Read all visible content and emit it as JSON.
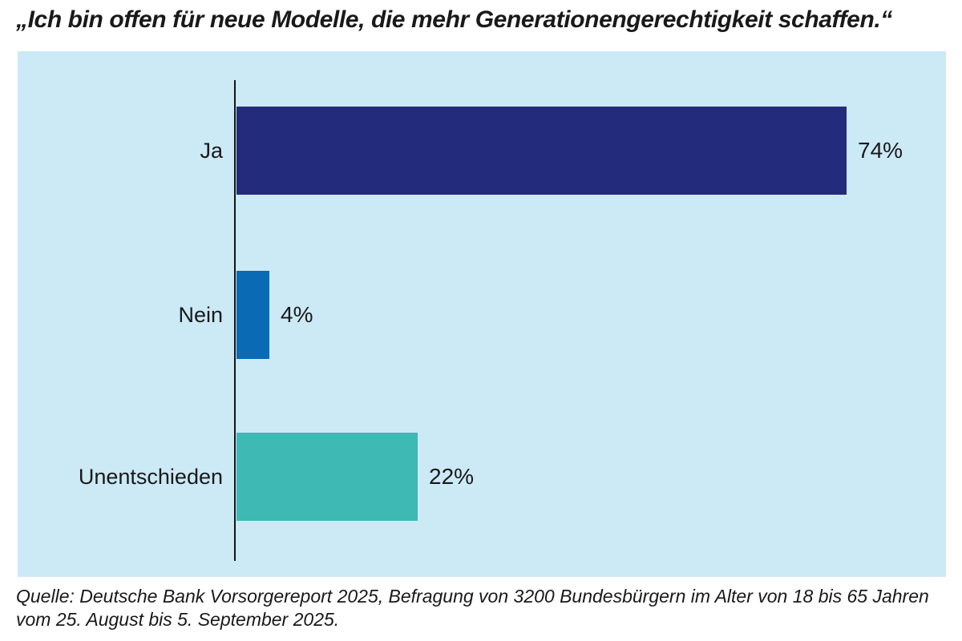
{
  "title": "„Ich bin offen für neue Modelle, die mehr Generationengerechtigkeit schaffen.“",
  "source": "Quelle: Deutsche Bank Vorsorgereport 2025, Befragung von 3200 Bundesbürgern im Alter von 18 bis 65 Jahren vom 25. August bis 5. September 2025.",
  "colors": {
    "panel_background": "#cce9f6",
    "axis": "#141414",
    "text": "#19191a"
  },
  "chart_data": {
    "type": "bar",
    "orientation": "horizontal",
    "title": "„Ich bin offen für neue Modelle, die mehr Generationengerechtigkeit schaffen.“",
    "categories": [
      "Ja",
      "Nein",
      "Unentschieden"
    ],
    "values": [
      74,
      4,
      22
    ],
    "unit": "%",
    "xlim": [
      0,
      86
    ],
    "grid": false,
    "legend": false,
    "rows": [
      {
        "label": "Ja",
        "value": 74,
        "display_value": "74%",
        "color": "#232c7c"
      },
      {
        "label": "Nein",
        "value": 4,
        "display_value": "4%",
        "color": "#0a6ab4"
      },
      {
        "label": "Unentschieden",
        "value": 22,
        "display_value": "22%",
        "color": "#3eb9b4"
      }
    ]
  }
}
